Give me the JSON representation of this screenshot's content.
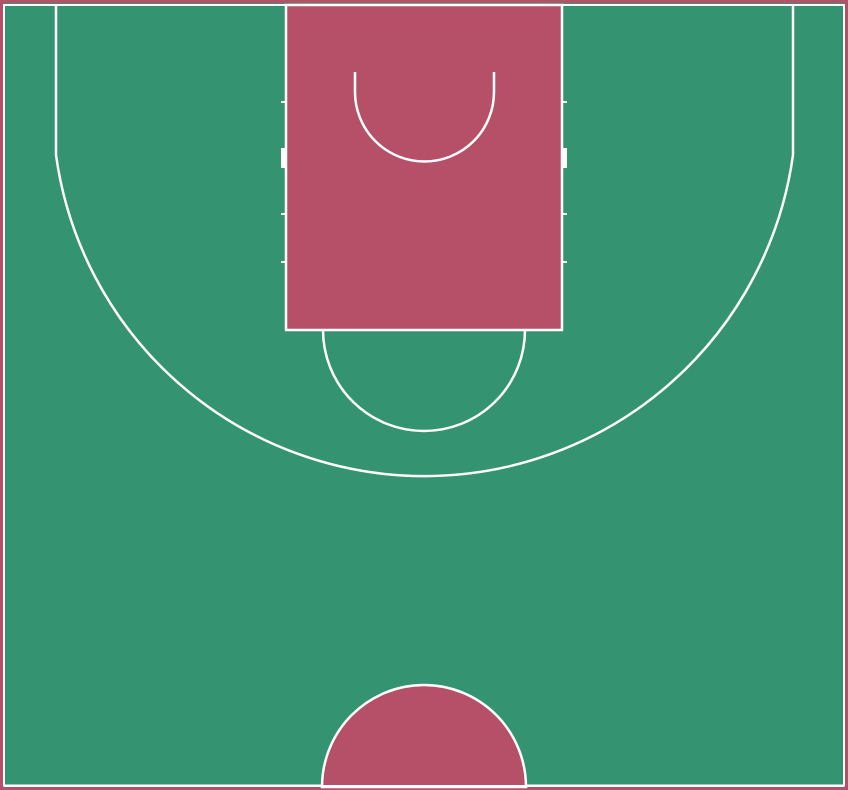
{
  "court": {
    "type": "basketball-half-court",
    "colors": {
      "floor": "#349371",
      "paint": "#b65068",
      "border": "#b65068",
      "lines": "#ffffff"
    }
  }
}
